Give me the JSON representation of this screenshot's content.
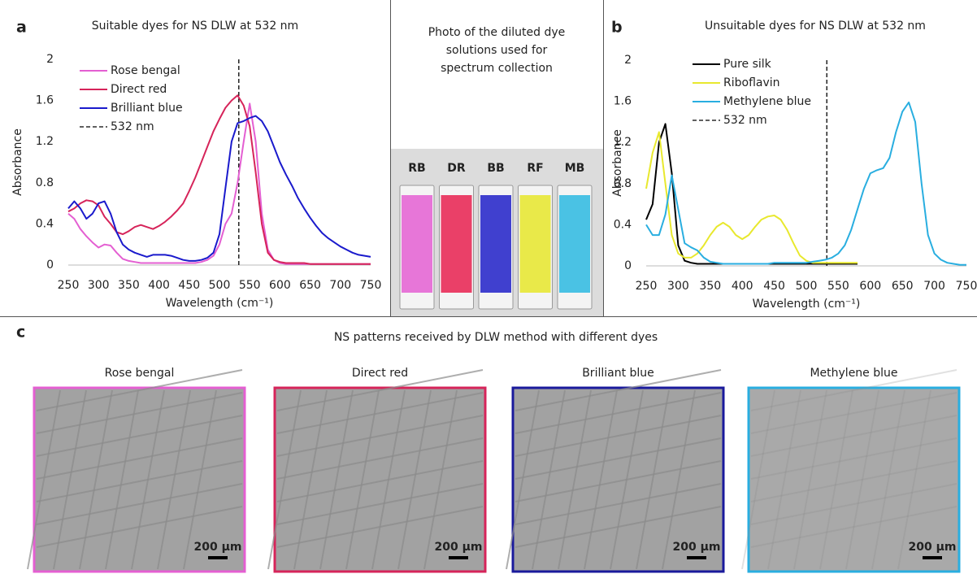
{
  "panel_labels": [
    "a",
    "b",
    "c"
  ],
  "chart_data": [
    {
      "type": "line",
      "title": "Suitable dyes for NS DLW at 532 nm",
      "xlabel": "Wavelength (cm⁻¹)",
      "ylabel": "Absorbance",
      "x": [
        250,
        260,
        270,
        280,
        290,
        300,
        310,
        320,
        330,
        340,
        350,
        360,
        370,
        380,
        390,
        400,
        410,
        420,
        430,
        440,
        450,
        460,
        470,
        480,
        490,
        500,
        510,
        520,
        530,
        540,
        550,
        560,
        570,
        580,
        590,
        600,
        610,
        620,
        630,
        640,
        650,
        660,
        670,
        680,
        690,
        700,
        710,
        720,
        730,
        740,
        750
      ],
      "xlim": [
        250,
        750
      ],
      "xticks": [
        250,
        300,
        350,
        400,
        450,
        500,
        550,
        600,
        650,
        700,
        750
      ],
      "ylim": [
        0,
        2
      ],
      "yticks": [
        0,
        0.4,
        0.8,
        1.2,
        1.6,
        2
      ],
      "series": [
        {
          "name": "Rose bengal",
          "color": "#e45fd2",
          "values": [
            0.5,
            0.45,
            0.35,
            0.28,
            0.22,
            0.17,
            0.2,
            0.19,
            0.12,
            0.06,
            0.04,
            0.03,
            0.02,
            0.02,
            0.02,
            0.02,
            0.02,
            0.02,
            0.02,
            0.02,
            0.02,
            0.02,
            0.03,
            0.05,
            0.09,
            0.2,
            0.4,
            0.5,
            0.8,
            1.2,
            1.57,
            1.2,
            0.5,
            0.15,
            0.05,
            0.02,
            0.01,
            0.01,
            0.01,
            0.01,
            0.01,
            0.01,
            0.01,
            0.01,
            0.01,
            0.01,
            0.01,
            0.01,
            0.01,
            0.01,
            0.01
          ]
        },
        {
          "name": "Direct red",
          "color": "#d6245a",
          "values": [
            0.52,
            0.55,
            0.6,
            0.63,
            0.62,
            0.58,
            0.47,
            0.4,
            0.32,
            0.3,
            0.33,
            0.37,
            0.39,
            0.37,
            0.35,
            0.38,
            0.42,
            0.47,
            0.53,
            0.6,
            0.72,
            0.85,
            1.0,
            1.15,
            1.3,
            1.42,
            1.53,
            1.6,
            1.65,
            1.55,
            1.35,
            0.9,
            0.4,
            0.12,
            0.05,
            0.03,
            0.02,
            0.02,
            0.02,
            0.02,
            0.01,
            0.01,
            0.01,
            0.01,
            0.01,
            0.01,
            0.01,
            0.01,
            0.01,
            0.01,
            0.01
          ]
        },
        {
          "name": "Brilliant blue",
          "color": "#1a1acc",
          "values": [
            0.55,
            0.62,
            0.55,
            0.45,
            0.5,
            0.6,
            0.62,
            0.5,
            0.32,
            0.2,
            0.15,
            0.12,
            0.1,
            0.08,
            0.1,
            0.1,
            0.1,
            0.09,
            0.07,
            0.05,
            0.04,
            0.04,
            0.05,
            0.07,
            0.12,
            0.3,
            0.75,
            1.2,
            1.38,
            1.4,
            1.43,
            1.45,
            1.4,
            1.3,
            1.15,
            1.0,
            0.88,
            0.77,
            0.65,
            0.55,
            0.46,
            0.38,
            0.31,
            0.26,
            0.22,
            0.18,
            0.15,
            0.12,
            0.1,
            0.09,
            0.08
          ]
        }
      ],
      "vline": {
        "name": "532 nm",
        "x": 532,
        "color": "#000000"
      }
    },
    {
      "type": "line",
      "title": "Unsuitable dyes for NS DLW at 532 nm",
      "xlabel": "Wavelength (cm⁻¹)",
      "ylabel": "Absorbance",
      "x": [
        250,
        260,
        270,
        280,
        290,
        300,
        310,
        320,
        330,
        340,
        350,
        360,
        370,
        380,
        390,
        400,
        410,
        420,
        430,
        440,
        450,
        460,
        470,
        480,
        490,
        500,
        510,
        520,
        530,
        540,
        550,
        560,
        570,
        580,
        590,
        600,
        610,
        620,
        630,
        640,
        650,
        660,
        670,
        680,
        690,
        700,
        710,
        720,
        730,
        740,
        750
      ],
      "xlim": [
        250,
        750
      ],
      "xticks": [
        250,
        300,
        350,
        400,
        450,
        500,
        550,
        600,
        650,
        700,
        750
      ],
      "ylim": [
        0,
        2
      ],
      "yticks": [
        0,
        0.4,
        0.8,
        1.2,
        1.6,
        2
      ],
      "series": [
        {
          "name": "Pure silk",
          "color": "#000000",
          "values": [
            0.45,
            0.6,
            1.2,
            1.38,
            0.9,
            0.2,
            0.05,
            0.03,
            0.02,
            0.02,
            0.02,
            0.02,
            0.02,
            0.02,
            0.02,
            0.02,
            0.02,
            0.02,
            0.02,
            0.02,
            0.02,
            0.02,
            0.02,
            0.02,
            0.02,
            0.02,
            0.02,
            0.02,
            0.02,
            0.02,
            0.02,
            0.02,
            0.02,
            0.02,
            null,
            null,
            null,
            null,
            null,
            null,
            null,
            null,
            null,
            null,
            null,
            null,
            null,
            null,
            null,
            null,
            null
          ]
        },
        {
          "name": "Riboflavin",
          "color": "#e8e82e",
          "values": [
            0.75,
            1.1,
            1.3,
            0.8,
            0.3,
            0.12,
            0.08,
            0.08,
            0.12,
            0.2,
            0.3,
            0.38,
            0.42,
            0.38,
            0.3,
            0.26,
            0.3,
            0.38,
            0.45,
            0.48,
            0.49,
            0.45,
            0.35,
            0.22,
            0.1,
            0.05,
            0.03,
            0.03,
            0.03,
            0.03,
            0.03,
            0.03,
            0.03,
            0.03,
            null,
            null,
            null,
            null,
            null,
            null,
            null,
            null,
            null,
            null,
            null,
            null,
            null,
            null,
            null,
            null,
            null
          ]
        },
        {
          "name": "Methylene blue",
          "color": "#29aee0",
          "values": [
            0.4,
            0.3,
            0.3,
            0.5,
            0.88,
            0.55,
            0.22,
            0.18,
            0.15,
            0.08,
            0.04,
            0.03,
            0.02,
            0.02,
            0.02,
            0.02,
            0.02,
            0.02,
            0.02,
            0.02,
            0.03,
            0.03,
            0.03,
            0.03,
            0.03,
            0.03,
            0.04,
            0.05,
            0.06,
            0.08,
            0.12,
            0.2,
            0.35,
            0.55,
            0.75,
            0.9,
            0.93,
            0.95,
            1.05,
            1.3,
            1.5,
            1.59,
            1.4,
            0.8,
            0.3,
            0.12,
            0.06,
            0.03,
            0.02,
            0.01,
            0.01
          ]
        }
      ],
      "vline": {
        "name": "532 nm",
        "x": 532,
        "color": "#000000"
      }
    }
  ],
  "photo": {
    "title": "Photo of the diluted dye solutions used for spectrum collection",
    "labels": [
      {
        "text": "RB",
        "color": "#e45fd2"
      },
      {
        "text": "DR",
        "color": "#e8204f"
      },
      {
        "text": "BB",
        "color": "#2020c8"
      },
      {
        "text": "RF",
        "color": "#e6e62a"
      },
      {
        "text": "MB",
        "color": "#2cb8e0"
      }
    ]
  },
  "panel_c": {
    "title": "NS patterns received by DLW method with different dyes",
    "images": [
      {
        "caption": "Rose bengal",
        "color": "#e45fd2",
        "scale": "200 µm"
      },
      {
        "caption": "Direct red",
        "color": "#d6245a",
        "scale": "200 µm"
      },
      {
        "caption": "Brilliant blue",
        "color": "#1a1a9c",
        "scale": "200 µm"
      },
      {
        "caption": "Methylene blue",
        "color": "#29aee0",
        "scale": "200 µm"
      }
    ]
  }
}
